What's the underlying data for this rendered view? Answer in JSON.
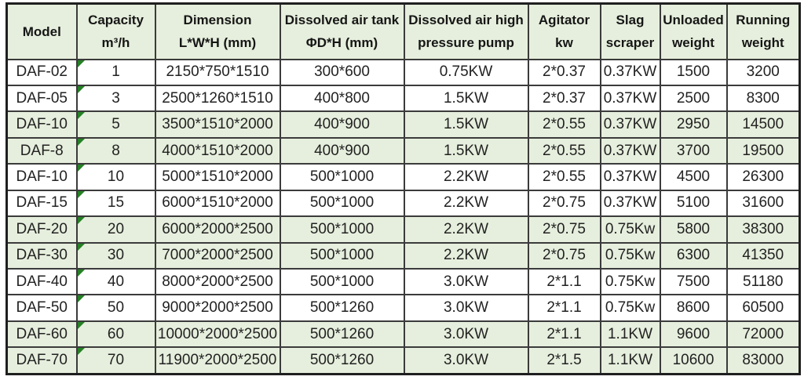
{
  "colors": {
    "page_bg": "#ffffff",
    "header_bg": "#e6efdd",
    "row_shade_green": "#e6efdd",
    "grid_line": "#3b3b3b",
    "outer_border": "#1f1f1f",
    "text": "#1d1d1d",
    "corner_triangle_green": "#258125"
  },
  "table": {
    "columns": [
      {
        "id": "model",
        "label_lines": [
          "Model"
        ]
      },
      {
        "id": "capacity",
        "label_lines": [
          "Capacity",
          "m³/h"
        ]
      },
      {
        "id": "dimension",
        "label_lines": [
          "Dimension",
          "L*W*H (mm)"
        ]
      },
      {
        "id": "tank",
        "label_lines": [
          "Dissolved air tank",
          "ΦD*H (mm)"
        ]
      },
      {
        "id": "pump",
        "label_lines": [
          "Dissolved air high",
          "pressure pump"
        ]
      },
      {
        "id": "agitator",
        "label_lines": [
          "Agitator",
          "kw"
        ]
      },
      {
        "id": "slag",
        "label_lines": [
          "Slag",
          "scraper"
        ]
      },
      {
        "id": "unloaded",
        "label_lines": [
          "Unloaded",
          "weight"
        ]
      },
      {
        "id": "running",
        "label_lines": [
          "Running",
          "weight"
        ]
      }
    ],
    "rows": [
      {
        "model": "DAF-02",
        "capacity": "1",
        "dimension": "2150*750*1510",
        "tank": "300*600",
        "pump": "0.75KW",
        "agitator": "2*0.37",
        "slag": "0.37KW",
        "unloaded": "1500",
        "running": "3200",
        "shaded": false,
        "corner_marker": true
      },
      {
        "model": "DAF-05",
        "capacity": "3",
        "dimension": "2500*1260*1510",
        "tank": "400*800",
        "pump": "1.5KW",
        "agitator": "2*0.37",
        "slag": "0.37KW",
        "unloaded": "2500",
        "running": "8300",
        "shaded": false,
        "corner_marker": true
      },
      {
        "model": "DAF-10",
        "capacity": "5",
        "dimension": "3500*1510*2000",
        "tank": "400*900",
        "pump": "1.5KW",
        "agitator": "2*0.55",
        "slag": "0.37KW",
        "unloaded": "2950",
        "running": "14500",
        "shaded": true,
        "corner_marker": true
      },
      {
        "model": "DAF-8",
        "capacity": "8",
        "dimension": "4000*1510*2000",
        "tank": "400*900",
        "pump": "1.5KW",
        "agitator": "2*0.55",
        "slag": "0.37KW",
        "unloaded": "3700",
        "running": "19500",
        "shaded": true,
        "corner_marker": true
      },
      {
        "model": "DAF-10",
        "capacity": "10",
        "dimension": "5000*1510*2000",
        "tank": "500*1000",
        "pump": "2.2KW",
        "agitator": "2*0.55",
        "slag": "0.37KW",
        "unloaded": "4500",
        "running": "26300",
        "shaded": false,
        "corner_marker": true
      },
      {
        "model": "DAF-15",
        "capacity": "15",
        "dimension": "6000*1510*2000",
        "tank": "500*1000",
        "pump": "2.2KW",
        "agitator": "2*0.75",
        "slag": "0.37KW",
        "unloaded": "5100",
        "running": "31600",
        "shaded": false,
        "corner_marker": true
      },
      {
        "model": "DAF-20",
        "capacity": "20",
        "dimension": "6000*2000*2500",
        "tank": "500*1000",
        "pump": "2.2KW",
        "agitator": "2*0.75",
        "slag": "0.75Kw",
        "unloaded": "5800",
        "running": "38300",
        "shaded": true,
        "corner_marker": true
      },
      {
        "model": "DAF-30",
        "capacity": "30",
        "dimension": "7000*2000*2500",
        "tank": "500*1000",
        "pump": "2.2KW",
        "agitator": "2*0.75",
        "slag": "0.75Kw",
        "unloaded": "6300",
        "running": "41350",
        "shaded": true,
        "corner_marker": true
      },
      {
        "model": "DAF-40",
        "capacity": "40",
        "dimension": "8000*2000*2500",
        "tank": "500*1000",
        "pump": "3.0KW",
        "agitator": "2*1.1",
        "slag": "0.75Kw",
        "unloaded": "7500",
        "running": "51180",
        "shaded": false,
        "corner_marker": true
      },
      {
        "model": "DAF-50",
        "capacity": "50",
        "dimension": "9000*2000*2500",
        "tank": "500*1260",
        "pump": "3.0KW",
        "agitator": "2*1.1",
        "slag": "0.75Kw",
        "unloaded": "8600",
        "running": "60500",
        "shaded": false,
        "corner_marker": true
      },
      {
        "model": "DAF-60",
        "capacity": "60",
        "dimension": "10000*2000*2500",
        "tank": "500*1260",
        "pump": "3.0KW",
        "agitator": "2*1.1",
        "slag": "1.1KW",
        "unloaded": "9600",
        "running": "72000",
        "shaded": true,
        "corner_marker": true
      },
      {
        "model": "DAF-70",
        "capacity": "70",
        "dimension": "11900*2000*2500",
        "tank": "500*1260",
        "pump": "3.0KW",
        "agitator": "2*1.5",
        "slag": "1.1KW",
        "unloaded": "10600",
        "running": "83000",
        "shaded": true,
        "corner_marker": true
      }
    ]
  }
}
